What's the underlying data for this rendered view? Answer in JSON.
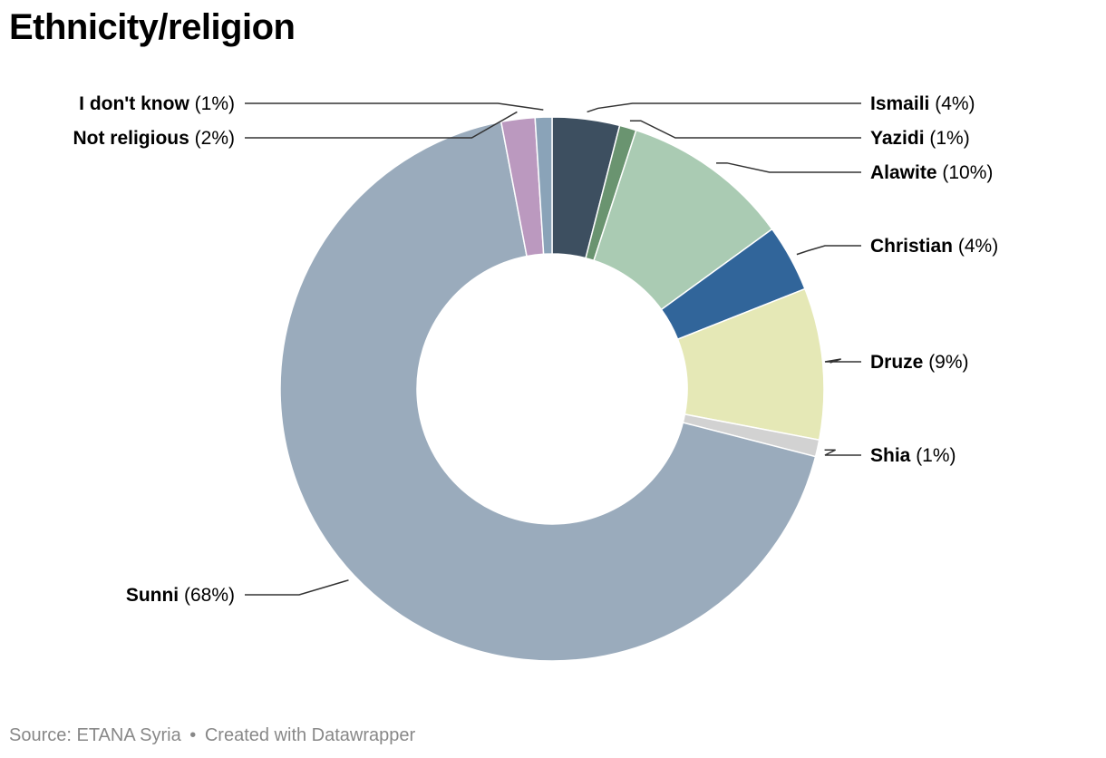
{
  "title": "Ethnicity/religion",
  "footer": {
    "source_label": "Source: ETANA Syria",
    "separator": "•",
    "credit": "Created with Datawrapper"
  },
  "chart_data": {
    "type": "pie",
    "donut": true,
    "title": "Ethnicity/religion",
    "slices": [
      {
        "label": "Ismaili",
        "value": 4,
        "value_label": "(4%)",
        "color": "#3d4f60"
      },
      {
        "label": "Yazidi",
        "value": 1,
        "value_label": "(1%)",
        "color": "#6a9470"
      },
      {
        "label": "Alawite",
        "value": 10,
        "value_label": "(10%)",
        "color": "#aacbb3"
      },
      {
        "label": "Christian",
        "value": 4,
        "value_label": "(4%)",
        "color": "#31659a"
      },
      {
        "label": "Druze",
        "value": 9,
        "value_label": "(9%)",
        "color": "#e5e8b6"
      },
      {
        "label": "Shia",
        "value": 1,
        "value_label": "(1%)",
        "color": "#d2d2d2"
      },
      {
        "label": "Sunni",
        "value": 68,
        "value_label": "(68%)",
        "color": "#9aabbc"
      },
      {
        "label": "Not religious",
        "value": 2,
        "value_label": "(2%)",
        "color": "#bb99bf"
      },
      {
        "label": "I don't know",
        "value": 1,
        "value_label": "(1%)",
        "color": "#8aa3b8"
      }
    ]
  }
}
